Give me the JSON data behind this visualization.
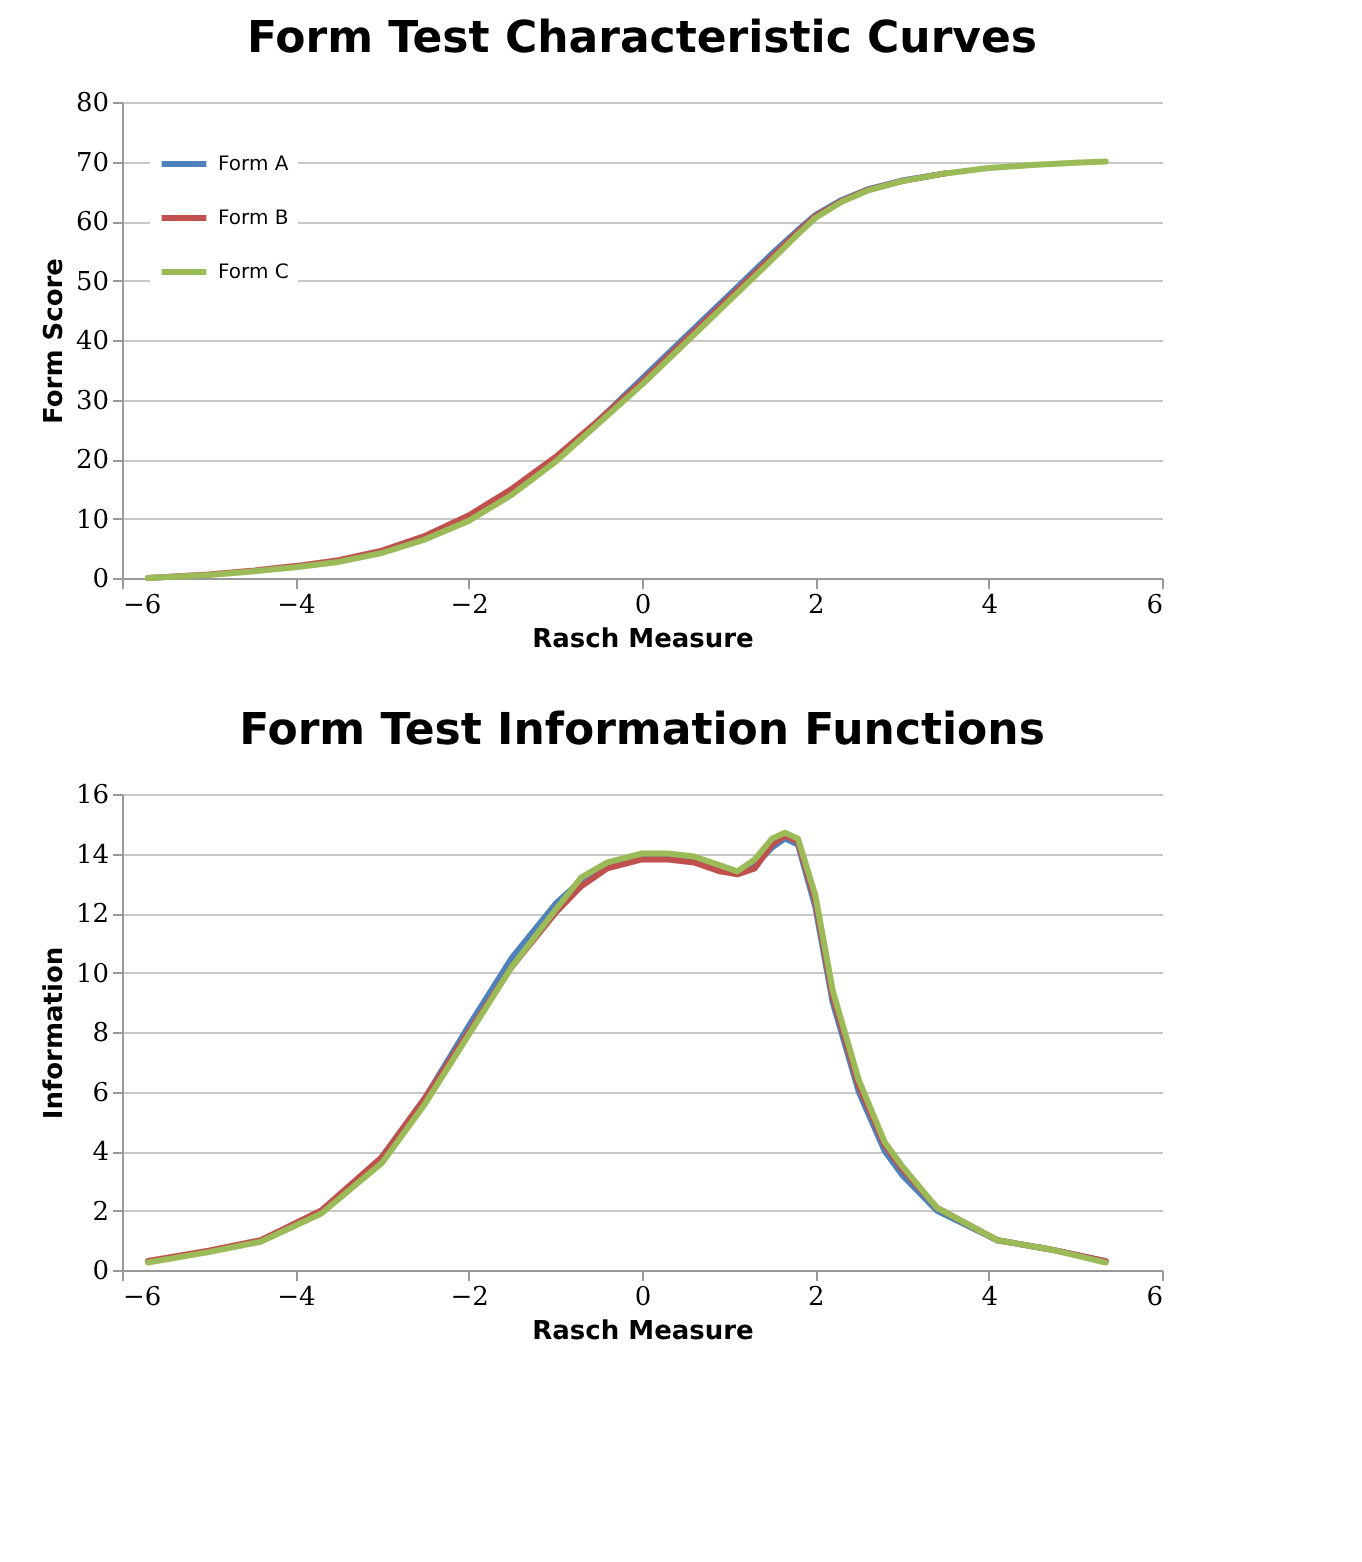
{
  "chart_data": [
    {
      "type": "line",
      "title": "Form Test Characteristic Curves",
      "xlabel": "Rasch Measure",
      "ylabel": "Form Score",
      "x": [
        -5.7,
        -5,
        -4.5,
        -4,
        -3.5,
        -3,
        -2.5,
        -2,
        -1.5,
        -1,
        -0.5,
        0,
        0.5,
        1,
        1.5,
        1.8,
        2,
        2.3,
        2.6,
        3,
        3.5,
        4,
        4.5,
        5,
        5.35
      ],
      "series": [
        {
          "name": "Form A",
          "color": "#4f81bd",
          "values": [
            null,
            null,
            null,
            null,
            null,
            null,
            null,
            null,
            null,
            null,
            26.5,
            33.5,
            40.5,
            47.5,
            54.5,
            58.5,
            61,
            63.5,
            65.3,
            66.8,
            68,
            null,
            null,
            null,
            null
          ]
        },
        {
          "name": "Form B",
          "color": "#c0504d",
          "values": [
            0,
            0.6,
            1.2,
            2,
            3,
            4.6,
            7.1,
            10.5,
            15,
            20.3,
            26.5,
            33,
            40,
            47,
            54,
            58.2,
            60.8,
            63.3,
            65.2,
            66.7,
            68,
            null,
            null,
            null,
            null
          ]
        },
        {
          "name": "Form C",
          "color": "#9bbb59",
          "values": [
            0,
            0.5,
            1.1,
            1.8,
            2.7,
            4.2,
            6.5,
            9.6,
            14,
            19.5,
            26,
            32.5,
            39.5,
            46.5,
            53.5,
            57.8,
            60.5,
            63.2,
            65.1,
            66.7,
            68,
            68.9,
            69.4,
            69.8,
            70
          ]
        }
      ],
      "xlim": [
        -6,
        6
      ],
      "xticks": [
        -6,
        -4,
        -2,
        0,
        2,
        4,
        6
      ],
      "ylim": [
        0,
        80
      ],
      "yticks": [
        0,
        10,
        20,
        30,
        40,
        50,
        60,
        70,
        80
      ],
      "grid": "y",
      "legend": "top left",
      "marker": "none",
      "line_style": "solid"
    },
    {
      "type": "line",
      "title": "Form Test Information Functions",
      "xlabel": "Rasch Measure",
      "ylabel": "Information",
      "x": [
        -5.7,
        -5,
        -4.4,
        -3.7,
        -3,
        -2.5,
        -2,
        -1.5,
        -1,
        -0.7,
        -0.4,
        0,
        0.3,
        0.6,
        0.9,
        1.1,
        1.3,
        1.5,
        1.65,
        1.8,
        2,
        2.2,
        2.5,
        2.8,
        3,
        3.4,
        4.1,
        4.7,
        5.35
      ],
      "series": [
        {
          "name": "Form A",
          "color": "#4f81bd",
          "values": [
            null,
            null,
            null,
            null,
            3.8,
            5.8,
            8.2,
            10.5,
            12.3,
            13.1,
            13.6,
            13.9,
            13.9,
            13.8,
            13.5,
            13.4,
            13.6,
            14.2,
            14.5,
            14.3,
            12.2,
            9,
            6,
            4,
            3.2,
            2,
            1,
            0.7,
            0.3
          ]
        },
        {
          "name": "Form B",
          "color": "#c0504d",
          "values": [
            0.3,
            0.65,
            1,
            2,
            3.8,
            5.8,
            8,
            10.2,
            12,
            12.9,
            13.5,
            13.8,
            13.8,
            13.7,
            13.4,
            13.3,
            13.5,
            14.3,
            14.6,
            14.4,
            12.4,
            9.2,
            6.2,
            4.2,
            3.4,
            2.1,
            1,
            0.7,
            0.3
          ]
        },
        {
          "name": "Form C",
          "color": "#9bbb59",
          "values": [
            0.25,
            0.6,
            0.95,
            1.9,
            3.6,
            5.6,
            7.9,
            10.2,
            12.1,
            13.2,
            13.7,
            14,
            14,
            13.9,
            13.6,
            13.4,
            13.8,
            14.5,
            14.7,
            14.5,
            12.6,
            9.4,
            6.4,
            4.3,
            3.5,
            2.1,
            1,
            0.7,
            0.25
          ]
        }
      ],
      "xlim": [
        -6,
        6
      ],
      "xticks": [
        -6,
        -4,
        -2,
        0,
        2,
        4,
        6
      ],
      "ylim": [
        0,
        16
      ],
      "yticks": [
        0,
        2,
        4,
        6,
        8,
        10,
        12,
        14,
        16
      ],
      "grid": "y",
      "legend": "top left",
      "marker": "none",
      "line_style": "solid"
    }
  ]
}
